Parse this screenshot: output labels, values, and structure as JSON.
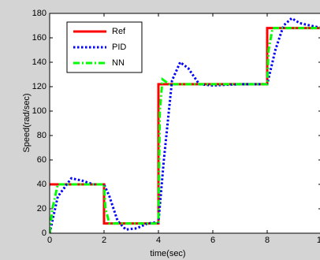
{
  "chart_data": {
    "type": "line",
    "xlabel": "time(sec)",
    "ylabel": "Speed(rad/sec)",
    "xlim": [
      0,
      10
    ],
    "xticks": [
      0,
      2,
      4,
      6,
      8,
      10
    ],
    "ylim": [
      0,
      180
    ],
    "yticks": [
      0,
      20,
      40,
      60,
      80,
      100,
      120,
      140,
      160,
      180
    ],
    "legend": "northwest",
    "grid": false,
    "series": [
      {
        "name": "Ref",
        "color": "#ff0000",
        "style": "solid",
        "x": [
          0,
          2,
          2,
          4,
          4,
          8,
          8,
          10
        ],
        "values": [
          40,
          40,
          8,
          8,
          122,
          122,
          168,
          168
        ]
      },
      {
        "name": "PID",
        "color": "#0000ff",
        "style": "dotted",
        "x": [
          0,
          0.3,
          0.8,
          1.2,
          1.6,
          2,
          2.2,
          2.5,
          2.8,
          3.2,
          3.6,
          4,
          4.2,
          4.5,
          4.8,
          5.1,
          5.5,
          6,
          7,
          8,
          8.3,
          8.6,
          8.9,
          9.2,
          9.6,
          10
        ],
        "values": [
          0,
          30,
          45,
          43,
          40,
          40,
          30,
          10,
          3,
          4,
          8,
          9,
          60,
          125,
          140,
          135,
          122,
          121,
          122,
          122,
          150,
          170,
          176,
          172,
          170,
          168
        ]
      },
      {
        "name": "NN",
        "color": "#00ff00",
        "style": "dashdot",
        "x": [
          0,
          0.1,
          0.3,
          2,
          2.05,
          2.2,
          4,
          4.05,
          4.15,
          4.4,
          8,
          8.05,
          8.2,
          10
        ],
        "values": [
          0,
          20,
          40,
          40,
          20,
          8,
          8,
          100,
          126,
          122,
          122,
          150,
          168,
          168
        ]
      }
    ]
  }
}
